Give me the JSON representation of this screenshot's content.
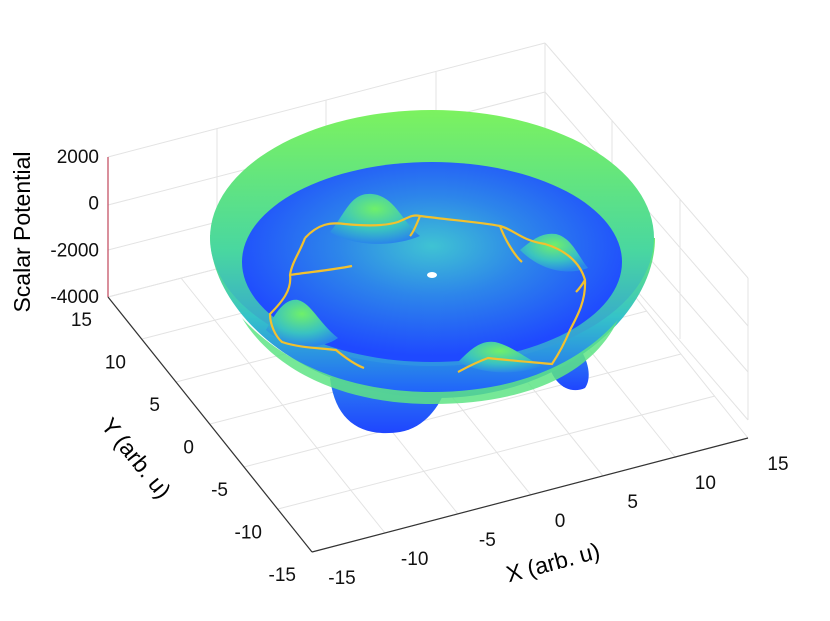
{
  "chart_data": {
    "type": "surface",
    "xlabel": "X (arb. u)",
    "ylabel": "Y (arb. u)",
    "zlabel": "Scalar Potential",
    "x_ticks": [
      "-15",
      "-10",
      "-5",
      "0",
      "5",
      "10",
      "15"
    ],
    "y_ticks": [
      "-15",
      "-10",
      "-5",
      "0",
      "5",
      "10",
      "15"
    ],
    "z_ticks": [
      "-4000",
      "-2000",
      "0",
      "2000"
    ],
    "xlim": [
      -15,
      15
    ],
    "ylim": [
      -15,
      15
    ],
    "zlim": [
      -4000,
      2000
    ],
    "grid": true,
    "colormap": [
      "#1f4fff",
      "#2f86f0",
      "#37c5c8",
      "#6ef06a"
    ],
    "contour_color": "#f2c12e",
    "surface_description_values": {
      "bowl_radius": 12,
      "peak_count": 4
    }
  }
}
